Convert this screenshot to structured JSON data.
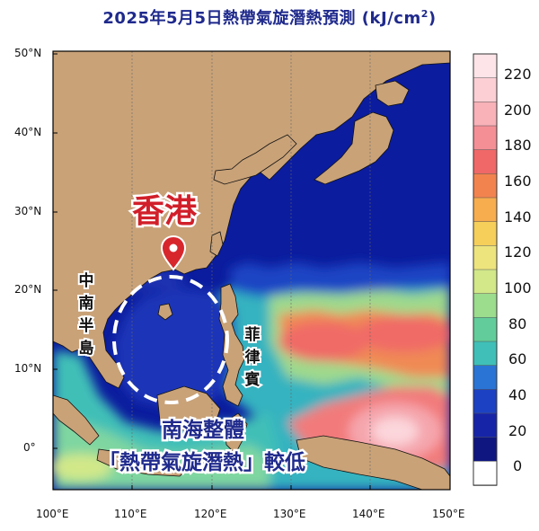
{
  "title": {
    "main": "2025年5月5日熱帶氣旋潛熱預測 (kJ/cm",
    "sup": "2",
    "end": ")"
  },
  "annotations": {
    "hong_kong": "香港",
    "indochina": [
      "中",
      "南",
      "半",
      "島"
    ],
    "philippines": [
      "菲",
      "律",
      "賓"
    ],
    "message_line1": "南海整體",
    "message_line2": "「熱帶氣旋潛熱」較低"
  },
  "axes": {
    "lat_labels": [
      "50°N",
      "40°N",
      "30°N",
      "20°N",
      "10°N",
      "0°"
    ],
    "lon_labels": [
      "100°E",
      "110°E",
      "120°E",
      "130°E",
      "140°E",
      "150°E"
    ],
    "lat_range": [
      -5,
      50
    ],
    "lon_range": [
      100,
      150
    ]
  },
  "colorbar": {
    "labels": [
      "220",
      "200",
      "180",
      "160",
      "140",
      "120",
      "100",
      "80",
      "60",
      "40",
      "20",
      "0"
    ],
    "colors": [
      "#fde4e8",
      "#fbcfd4",
      "#f8b2b8",
      "#f48f96",
      "#f06868",
      "#f2834f",
      "#f7ad4e",
      "#f6cf5a",
      "#eee47e",
      "#d2e889",
      "#9bdc8d",
      "#62cd9a",
      "#3fbfb7",
      "#2a74d5",
      "#1c41c2",
      "#1624a8",
      "#10167f",
      "#ffffff"
    ]
  },
  "colors": {
    "land": "#c9a278",
    "ocean_low": "#0a1aa0",
    "title": "#1f2a8c",
    "marker": "#d8262d",
    "hk_text": "#d11f2a"
  }
}
